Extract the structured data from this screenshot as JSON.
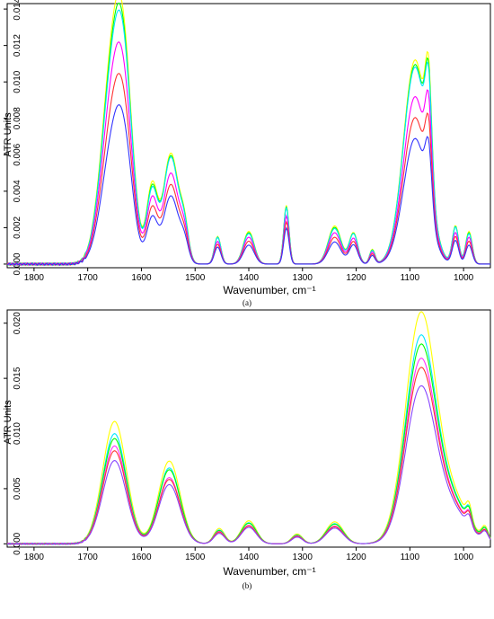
{
  "chart_data": [
    {
      "type": "line",
      "caption": "(a)",
      "xlabel": "Wavenumber, cm⁻¹",
      "ylabel": "ATR Units",
      "x_reversed": true,
      "xlim": [
        1850,
        950
      ],
      "ylim": [
        -0.0002,
        0.0143
      ],
      "xticks": [
        1800,
        1700,
        1600,
        1500,
        1400,
        1300,
        1200,
        1100,
        1000
      ],
      "yticks": [
        "0.000",
        "0.002",
        "0.004",
        "0.006",
        "0.008",
        "0.010",
        "0.012",
        "0.014"
      ],
      "series": [
        {
          "color": "#ffff00",
          "scale": 1.0
        },
        {
          "color": "#00ff00",
          "scale": 0.96
        },
        {
          "color": "#00e5ff",
          "scale": 0.93
        },
        {
          "color": "#ff00ff",
          "scale": 0.82
        },
        {
          "color": "#ff3333",
          "scale": 0.7
        },
        {
          "color": "#3333ff",
          "scale": 0.58
        }
      ],
      "peaks": [
        {
          "x": 1650,
          "y": 0.0122,
          "w": 22
        },
        {
          "x": 1630,
          "y": 0.005,
          "w": 15
        },
        {
          "x": 1580,
          "y": 0.0042,
          "w": 10
        },
        {
          "x": 1545,
          "y": 0.0064,
          "w": 14
        },
        {
          "x": 1520,
          "y": 0.0018,
          "w": 8
        },
        {
          "x": 1458,
          "y": 0.0016,
          "w": 6
        },
        {
          "x": 1400,
          "y": 0.0018,
          "w": 10
        },
        {
          "x": 1330,
          "y": 0.0034,
          "w": 5
        },
        {
          "x": 1240,
          "y": 0.0021,
          "w": 12
        },
        {
          "x": 1205,
          "y": 0.0018,
          "w": 8
        },
        {
          "x": 1170,
          "y": 0.0008,
          "w": 5
        },
        {
          "x": 1090,
          "y": 0.0118,
          "w": 22
        },
        {
          "x": 1065,
          "y": 0.0055,
          "w": 6
        },
        {
          "x": 1015,
          "y": 0.0022,
          "w": 6
        },
        {
          "x": 990,
          "y": 0.0018,
          "w": 6
        }
      ]
    },
    {
      "type": "line",
      "caption": "(b)",
      "xlabel": "Wavenumber, cm⁻¹",
      "ylabel": "ATR Units",
      "x_reversed": true,
      "xlim": [
        1850,
        950
      ],
      "ylim": [
        -0.0003,
        0.0212
      ],
      "xticks": [
        1800,
        1700,
        1600,
        1500,
        1400,
        1300,
        1200,
        1100,
        1000
      ],
      "yticks": [
        "0.000",
        "0.005",
        "0.010",
        "0.015",
        "0.020"
      ],
      "series": [
        {
          "color": "#ffff00",
          "scale": 1.0
        },
        {
          "color": "#00e5ff",
          "scale": 0.9
        },
        {
          "color": "#00ff00",
          "scale": 0.86
        },
        {
          "color": "#ff33ff",
          "scale": 0.8
        },
        {
          "color": "#ff3333",
          "scale": 0.76
        },
        {
          "color": "#8844ff",
          "scale": 0.68
        }
      ],
      "peaks": [
        {
          "x": 1650,
          "y": 0.0111,
          "w": 22
        },
        {
          "x": 1548,
          "y": 0.0079,
          "w": 20
        },
        {
          "x": 1455,
          "y": 0.0014,
          "w": 10
        },
        {
          "x": 1400,
          "y": 0.0022,
          "w": 14
        },
        {
          "x": 1310,
          "y": 0.0009,
          "w": 10
        },
        {
          "x": 1240,
          "y": 0.0021,
          "w": 16
        },
        {
          "x": 1080,
          "y": 0.0205,
          "w": 28
        },
        {
          "x": 1020,
          "y": 0.004,
          "w": 30
        },
        {
          "x": 990,
          "y": 0.0014,
          "w": 5
        },
        {
          "x": 960,
          "y": 0.0012,
          "w": 6
        }
      ]
    }
  ]
}
